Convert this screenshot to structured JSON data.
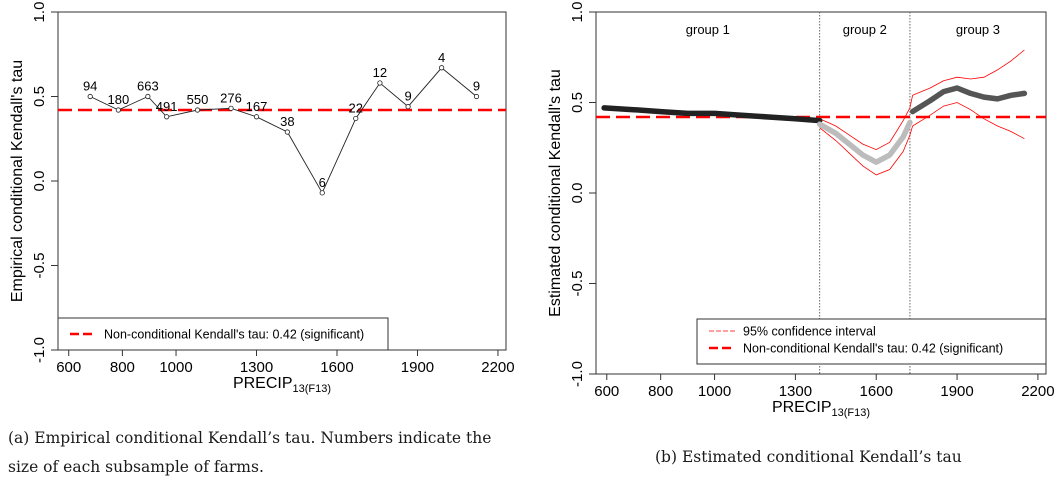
{
  "chart_data": [
    {
      "type": "line",
      "xlabel": "PRECIP",
      "xlabel_sub": "13(F13)",
      "ylabel": "Empirical conditional Kendall's tau",
      "xlim": [
        560,
        2230
      ],
      "ylim": [
        -1.0,
        1.0
      ],
      "x_ticks": [
        600,
        800,
        1000,
        1300,
        1600,
        1900,
        2200
      ],
      "x_tick_labels": [
        "600",
        "800",
        "1000",
        "1300",
        "1600",
        "1900",
        "2200"
      ],
      "y_ticks": [
        -1.0,
        -0.5,
        0.0,
        0.5,
        1.0
      ],
      "y_tick_labels": [
        "-1.0",
        "-0.5",
        "0.0",
        "0.5",
        "1.0"
      ],
      "reference_line": {
        "value": 0.42,
        "color": "#ff0000",
        "style": "dashed"
      },
      "series": [
        {
          "x": [
            680,
            785,
            895,
            965,
            1080,
            1205,
            1300,
            1415,
            1545,
            1670,
            1760,
            1865,
            1990,
            2120
          ],
          "y": [
            0.5,
            0.42,
            0.5,
            0.38,
            0.42,
            0.43,
            0.38,
            0.29,
            -0.07,
            0.37,
            0.58,
            0.44,
            0.67,
            0.5
          ],
          "labels": [
            "94",
            "180",
            "663",
            "491",
            "550",
            "276",
            "167",
            "38",
            "6",
            "22",
            "12",
            "9",
            "4",
            "9"
          ]
        }
      ],
      "legend": {
        "position": "bottom-left",
        "entries": [
          "Non-conditional Kendall's tau: 0.42 (significant)"
        ]
      },
      "caption": [
        "(a) Empirical conditional Kendall’s tau. Numbers indicate the",
        "size of each subsample of farms."
      ]
    },
    {
      "type": "line",
      "xlabel": "PRECIP",
      "xlabel_sub": "13(F13)",
      "ylabel": "Estimated conditional Kendall's tau",
      "xlim": [
        560,
        2230
      ],
      "ylim": [
        -1.0,
        1.0
      ],
      "x_ticks": [
        600,
        800,
        1000,
        1300,
        1600,
        1900,
        2200
      ],
      "x_tick_labels": [
        "600",
        "800",
        "1000",
        "1300",
        "1600",
        "1900",
        "2200"
      ],
      "y_ticks": [
        -1.0,
        -0.5,
        0.0,
        0.5,
        1.0
      ],
      "y_tick_labels": [
        "-1.0",
        "-0.5",
        "0.0",
        "0.5",
        "1.0"
      ],
      "reference_line": {
        "value": 0.42,
        "color": "#ff0000",
        "style": "dashed"
      },
      "group_dividers": [
        1390,
        1725
      ],
      "groups": [
        "group 1",
        "group 2",
        "group 3"
      ],
      "series": [
        {
          "x": [
            590,
            700,
            800,
            900,
            1000,
            1100,
            1200,
            1300,
            1390
          ],
          "y": [
            0.47,
            0.46,
            0.45,
            0.44,
            0.44,
            0.43,
            0.42,
            0.41,
            0.4
          ],
          "color": "#222222"
        },
        {
          "x": [
            1390,
            1450,
            1500,
            1550,
            1600,
            1650,
            1700,
            1725
          ],
          "y": [
            0.38,
            0.33,
            0.27,
            0.21,
            0.17,
            0.21,
            0.31,
            0.39
          ],
          "color": "#bcbcbc"
        },
        {
          "x": [
            1735,
            1800,
            1850,
            1900,
            1950,
            2000,
            2050,
            2100,
            2150
          ],
          "y": [
            0.45,
            0.51,
            0.56,
            0.58,
            0.55,
            0.53,
            0.52,
            0.54,
            0.55
          ],
          "color": "#555555"
        }
      ],
      "confidence_band": {
        "x": [
          1390,
          1450,
          1500,
          1550,
          1600,
          1650,
          1700,
          1725,
          1735,
          1800,
          1850,
          1900,
          1950,
          2000,
          2050,
          2100,
          2150
        ],
        "upper": [
          0.41,
          0.37,
          0.32,
          0.27,
          0.24,
          0.28,
          0.4,
          0.47,
          0.54,
          0.58,
          0.62,
          0.64,
          0.63,
          0.64,
          0.68,
          0.73,
          0.79
        ],
        "lower": [
          0.36,
          0.29,
          0.22,
          0.15,
          0.1,
          0.13,
          0.23,
          0.32,
          0.37,
          0.43,
          0.48,
          0.5,
          0.46,
          0.41,
          0.37,
          0.34,
          0.3
        ],
        "color": "#ff0000"
      },
      "legend": {
        "position": "bottom-right",
        "entries": [
          "95% confidence interval",
          "Non-conditional Kendall's tau: 0.42 (significant)"
        ]
      },
      "caption": [
        "(b) Estimated conditional Kendall’s tau"
      ]
    }
  ]
}
